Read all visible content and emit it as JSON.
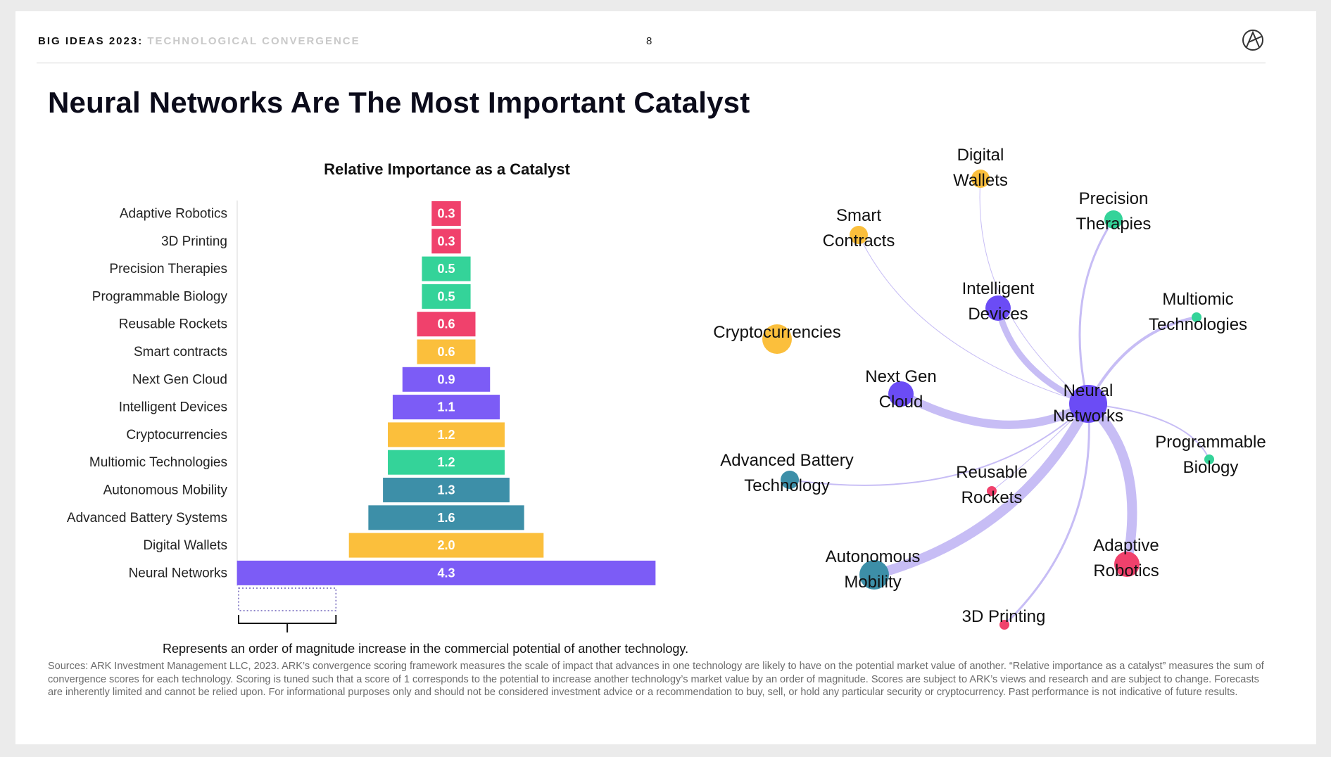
{
  "header": {
    "brand": "BIG IDEAS 2023",
    "separator": ":",
    "section": "TECHNOLOGICAL CONVERGENCE",
    "page_number": "8"
  },
  "title": "Neural Networks Are The Most Important Catalyst",
  "chart_data": [
    {
      "type": "bar",
      "title": "Relative Importance as a Catalyst",
      "orientation": "horizontal-centered",
      "categories": [
        "Adaptive Robotics",
        "3D Printing",
        "Precision Therapies",
        "Programmable Biology",
        "Reusable Rockets",
        "Smart contracts",
        "Next Gen Cloud",
        "Intelligent Devices",
        "Cryptocurrencies",
        "Multiomic Technologies",
        "Autonomous Mobility",
        "Advanced Battery Systems",
        "Digital Wallets",
        "Neural Networks"
      ],
      "values": [
        0.3,
        0.3,
        0.5,
        0.5,
        0.6,
        0.6,
        0.9,
        1.1,
        1.2,
        1.2,
        1.3,
        1.6,
        2.0,
        4.3
      ],
      "value_labels": [
        "0.3",
        "0.3",
        "0.5",
        "0.5",
        "0.6",
        "0.6",
        "0.9",
        "1.1",
        "1.2",
        "1.2",
        "1.3",
        "1.6",
        "2.0",
        "4.3"
      ],
      "colors": [
        "#f0416c",
        "#f0416c",
        "#34d399",
        "#34d399",
        "#f0416c",
        "#fbbf3c",
        "#7c5cf6",
        "#7c5cf6",
        "#fbbf3c",
        "#34d399",
        "#3d8fa8",
        "#3d8fa8",
        "#fbbf3c",
        "#7c5cf6"
      ],
      "scale_unit": 1,
      "scale_note": "Represents an order of magnitude increase in the commercial potential of another technology."
    },
    {
      "type": "network",
      "hub": "Neural Networks",
      "hub_label": [
        "Neural",
        "Networks"
      ],
      "hub_color": "#6b4cf5",
      "edge_color": "#c7bdf5",
      "nodes": [
        {
          "id": "digital-wallets",
          "label": [
            "Digital",
            "Wallets"
          ],
          "color": "#fbbf3c",
          "size": 2,
          "link_strength": 1
        },
        {
          "id": "precision-therapies",
          "label": [
            "Precision",
            "Therapies"
          ],
          "color": "#34d399",
          "size": 2,
          "link_strength": 3
        },
        {
          "id": "smart-contracts",
          "label": [
            "Smart",
            "Contracts"
          ],
          "color": "#fbbf3c",
          "size": 2,
          "link_strength": 1
        },
        {
          "id": "intelligent-devices",
          "label": [
            "Intelligent",
            "Devices"
          ],
          "color": "#6b4cf5",
          "size": 3,
          "link_strength": 9
        },
        {
          "id": "multiomic-technologies",
          "label": [
            "Multiomic",
            "Technologies"
          ],
          "color": "#34d399",
          "size": 1,
          "link_strength": 4
        },
        {
          "id": "cryptocurrencies",
          "label": [
            "Cryptocurrencies"
          ],
          "color": "#fbbf3c",
          "size": 4,
          "link_strength": 0
        },
        {
          "id": "next-gen-cloud",
          "label": [
            "Next Gen",
            "Cloud"
          ],
          "color": "#6b4cf5",
          "size": 3,
          "link_strength": 12
        },
        {
          "id": "programmable-biology",
          "label": [
            "Programmable",
            "Biology"
          ],
          "color": "#34d399",
          "size": 1,
          "link_strength": 2
        },
        {
          "id": "advanced-battery-technology",
          "label": [
            "Advanced Battery",
            "Technology"
          ],
          "color": "#3d8fa8",
          "size": 2,
          "link_strength": 2
        },
        {
          "id": "reusable-rockets",
          "label": [
            "Reusable",
            "Rockets"
          ],
          "color": "#f0416c",
          "size": 1,
          "link_strength": 1
        },
        {
          "id": "autonomous-mobility",
          "label": [
            "Autonomous",
            "Mobility"
          ],
          "color": "#3d8fa8",
          "size": 4,
          "link_strength": 14
        },
        {
          "id": "adaptive-robotics",
          "label": [
            "Adaptive",
            "Robotics"
          ],
          "color": "#f0416c",
          "size": 3,
          "link_strength": 14
        },
        {
          "id": "3d-printing",
          "label": [
            "3D Printing"
          ],
          "color": "#f0416c",
          "size": 1,
          "link_strength": 3
        }
      ]
    }
  ],
  "footnote": "Sources: ARK Investment Management LLC, 2023. ARK’s convergence scoring framework measures the scale of impact that advances in one technology are likely to have on the potential market value of another. “Relative importance as a catalyst” measures the sum of convergence scores for each technology. Scoring is tuned such that a score of 1 corresponds to the potential to increase another technology’s market value by an order of magnitude. Scores are subject to ARK’s views and research and are subject to change. Forecasts are inherently limited and cannot be relied upon. For informational purposes only and should not be considered investment advice or a recommendation to buy, sell, or hold any particular security or cryptocurrency. Past performance is not indicative of future results."
}
